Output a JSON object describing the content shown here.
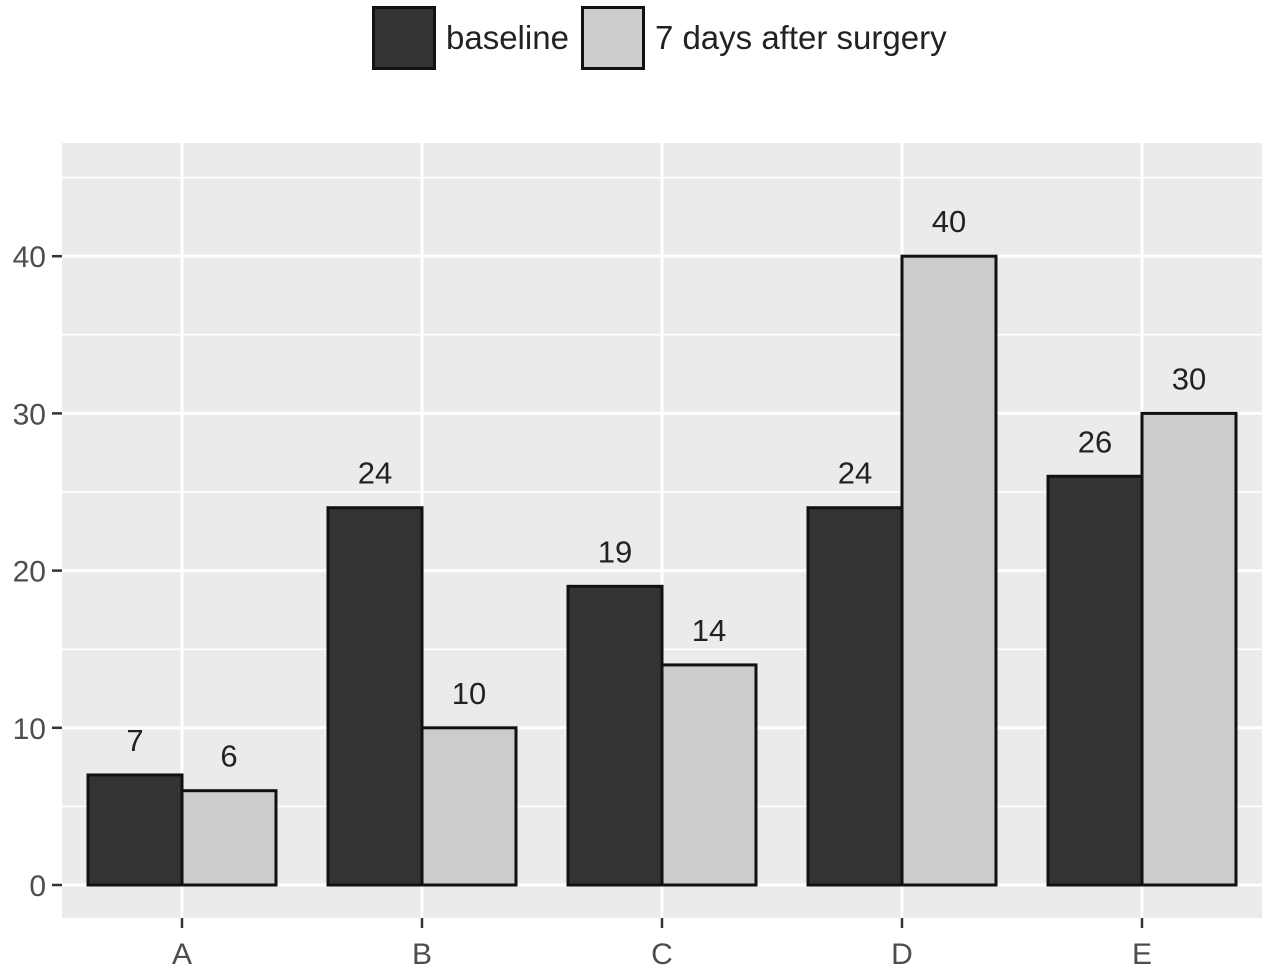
{
  "chart_data": {
    "type": "bar",
    "title": "",
    "xlabel": "",
    "ylabel": "",
    "categories": [
      "A",
      "B",
      "C",
      "D",
      "E"
    ],
    "series": [
      {
        "name": "baseline",
        "values": [
          7,
          24,
          19,
          24,
          26
        ],
        "color": "#333333"
      },
      {
        "name": "7 days after surgery",
        "values": [
          6,
          10,
          14,
          40,
          30
        ],
        "color": "#cccccc"
      }
    ],
    "ylim": [
      0,
      47
    ],
    "yticks": [
      0,
      10,
      20,
      30,
      40
    ],
    "ytick_labels": [
      "0",
      "10",
      "20",
      "30",
      "40"
    ],
    "grid": true,
    "legend_position": "top",
    "data_labels": true,
    "panel_color": "#ebebeb",
    "grid_color": "#ffffff"
  }
}
